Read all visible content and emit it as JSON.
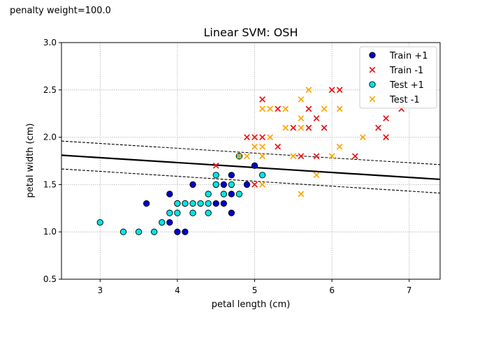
{
  "caption": "penalty weight=100.0",
  "chart_data": {
    "type": "scatter",
    "title": "Linear SVM: OSH",
    "xlabel": "petal length (cm)",
    "ylabel": "petal width (cm)",
    "xlim": [
      2.5,
      7.4
    ],
    "ylim": [
      0.5,
      3.0
    ],
    "xticks": [
      3,
      4,
      5,
      6,
      7
    ],
    "yticks": [
      0.5,
      1.0,
      1.5,
      2.0,
      2.5,
      3.0
    ],
    "grid": true,
    "legend_position": "top-right",
    "series": [
      {
        "name": "Train +1",
        "marker": "circle",
        "color": "#0000cc",
        "points": [
          [
            3.6,
            1.3
          ],
          [
            3.9,
            1.4
          ],
          [
            3.9,
            1.1
          ],
          [
            4.0,
            1.0
          ],
          [
            4.0,
            1.3
          ],
          [
            4.1,
            1.0
          ],
          [
            4.1,
            1.3
          ],
          [
            4.2,
            1.5
          ],
          [
            4.5,
            1.3
          ],
          [
            4.5,
            1.5
          ],
          [
            4.6,
            1.3
          ],
          [
            4.6,
            1.5
          ],
          [
            4.7,
            1.2
          ],
          [
            4.7,
            1.4
          ],
          [
            4.7,
            1.6
          ],
          [
            4.8,
            1.8
          ],
          [
            4.9,
            1.5
          ],
          [
            5.0,
            1.7
          ]
        ]
      },
      {
        "name": "Train -1",
        "marker": "x",
        "color": "#ee1111",
        "points": [
          [
            4.5,
            1.7
          ],
          [
            4.9,
            2.0
          ],
          [
            5.0,
            2.0
          ],
          [
            5.0,
            1.5
          ],
          [
            5.1,
            2.4
          ],
          [
            5.1,
            2.0
          ],
          [
            5.3,
            2.3
          ],
          [
            5.3,
            1.9
          ],
          [
            5.5,
            2.1
          ],
          [
            5.6,
            1.8
          ],
          [
            5.7,
            2.3
          ],
          [
            5.7,
            2.1
          ],
          [
            5.8,
            2.2
          ],
          [
            5.8,
            1.8
          ],
          [
            5.9,
            2.1
          ],
          [
            6.0,
            2.5
          ],
          [
            6.1,
            2.5
          ],
          [
            6.3,
            1.8
          ],
          [
            6.6,
            2.1
          ],
          [
            6.7,
            2.2
          ],
          [
            6.7,
            2.0
          ],
          [
            6.9,
            2.3
          ]
        ]
      },
      {
        "name": "Test +1",
        "marker": "circle",
        "color": "#00e5e5",
        "points": [
          [
            3.0,
            1.1
          ],
          [
            3.3,
            1.0
          ],
          [
            3.5,
            1.0
          ],
          [
            3.7,
            1.0
          ],
          [
            3.8,
            1.1
          ],
          [
            3.9,
            1.2
          ],
          [
            4.0,
            1.2
          ],
          [
            4.0,
            1.3
          ],
          [
            4.1,
            1.3
          ],
          [
            4.2,
            1.2
          ],
          [
            4.2,
            1.3
          ],
          [
            4.3,
            1.3
          ],
          [
            4.4,
            1.2
          ],
          [
            4.4,
            1.3
          ],
          [
            4.4,
            1.4
          ],
          [
            4.5,
            1.5
          ],
          [
            4.5,
            1.6
          ],
          [
            4.6,
            1.4
          ],
          [
            4.7,
            1.5
          ],
          [
            4.8,
            1.4
          ],
          [
            4.8,
            1.8
          ],
          [
            5.1,
            1.6
          ]
        ]
      },
      {
        "name": "Test -1",
        "marker": "x",
        "color": "#ffa500",
        "points": [
          [
            4.8,
            1.8
          ],
          [
            4.9,
            1.8
          ],
          [
            5.0,
            1.9
          ],
          [
            5.1,
            1.9
          ],
          [
            5.1,
            2.3
          ],
          [
            5.1,
            1.8
          ],
          [
            5.1,
            1.5
          ],
          [
            5.2,
            2.0
          ],
          [
            5.2,
            2.3
          ],
          [
            5.4,
            2.1
          ],
          [
            5.4,
            2.3
          ],
          [
            5.5,
            1.8
          ],
          [
            5.6,
            2.4
          ],
          [
            5.6,
            2.2
          ],
          [
            5.6,
            2.1
          ],
          [
            5.6,
            1.4
          ],
          [
            5.7,
            2.5
          ],
          [
            5.8,
            1.6
          ],
          [
            5.9,
            2.3
          ],
          [
            6.0,
            1.8
          ],
          [
            6.1,
            2.3
          ],
          [
            6.1,
            1.9
          ],
          [
            6.4,
            2.0
          ]
        ]
      }
    ],
    "lines": [
      {
        "label": "decision boundary",
        "x": [
          2.5,
          7.4
        ],
        "y": [
          1.81,
          1.555
        ],
        "style": "solid",
        "color": "#000000"
      },
      {
        "label": "upper margin",
        "x": [
          2.5,
          7.4
        ],
        "y": [
          1.96,
          1.71
        ],
        "style": "dashed",
        "color": "#000000"
      },
      {
        "label": "lower margin",
        "x": [
          2.5,
          7.4
        ],
        "y": [
          1.665,
          1.41
        ],
        "style": "dashed",
        "color": "#000000"
      }
    ]
  }
}
